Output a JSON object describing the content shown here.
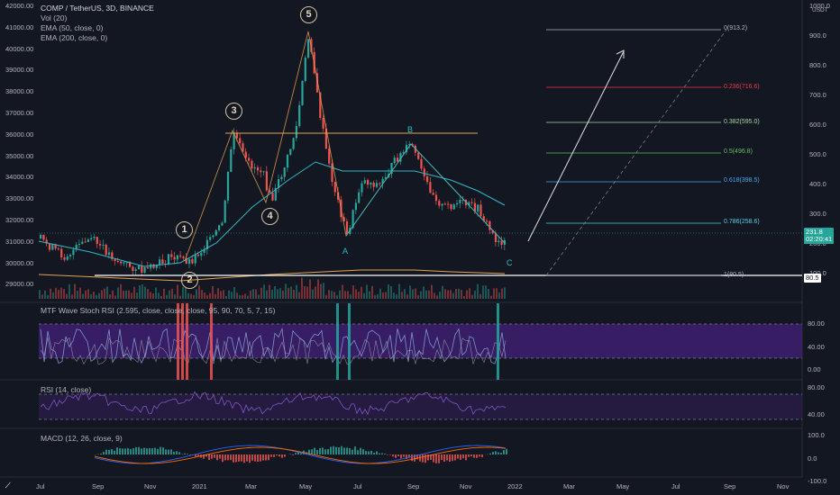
{
  "header": {
    "symbol_line": "COMP / TetherUS, 3D, BINANCE",
    "indicators": [
      "Vol (20)",
      "EMA (50, close, 0)",
      "EMA (200, close, 0)"
    ]
  },
  "price_axis": {
    "left_ticks": [
      "42000.00",
      "41000.00",
      "40000.00",
      "39000.00",
      "38000.00",
      "37000.00",
      "36000.00",
      "35000.00",
      "34000.00",
      "33000.00",
      "32000.00",
      "31000.00",
      "30000.00",
      "29000.00"
    ],
    "right_ticks": [
      "1000.0",
      "900.0",
      "800.0",
      "700.0",
      "600.0",
      "500.0",
      "400.0",
      "300.0",
      "200.0",
      "100.0"
    ],
    "unit": "USDT",
    "current_price": "231.8",
    "countdown": "02:20:41",
    "right_tag": "80.5"
  },
  "fib_levels": [
    {
      "label": "0(913.2)",
      "color": "#b2b5be"
    },
    {
      "label": "0.236(716.6)",
      "color": "#f23645"
    },
    {
      "label": "0.382(595.0)",
      "color": "#81c784"
    },
    {
      "label": "0.5(496.8)",
      "color": "#4caf50"
    },
    {
      "label": "0.618(398.5)",
      "color": "#2196f3"
    },
    {
      "label": "0.786(258.6)",
      "color": "#2fb8c8"
    },
    {
      "label": "1(80.5)",
      "color": "#b2b5be"
    }
  ],
  "wave_labels": [
    "1",
    "2",
    "3",
    "4",
    "5"
  ],
  "correction_labels": [
    "A",
    "B",
    "C"
  ],
  "panes": {
    "stoch": {
      "title": "MTF Wave Stoch RSI (2.595, close, close, close, 95, 90, 70, 5, 7, 15)",
      "ticks": [
        "80.00",
        "40.00",
        "0.00"
      ]
    },
    "rsi": {
      "title": "RSI (14, close)",
      "ticks": [
        "80.00",
        "40.00"
      ]
    },
    "macd": {
      "title": "MACD (12, 26, close, 9)",
      "ticks": [
        "100.0",
        "0.0",
        "-100.0"
      ]
    }
  },
  "time_axis": [
    "Jul",
    "Sep",
    "Nov",
    "2021",
    "Mar",
    "May",
    "Jul",
    "Sep",
    "Nov",
    "2022",
    "Mar",
    "May",
    "Jul",
    "Sep",
    "Nov"
  ],
  "colors": {
    "bg": "#131722",
    "up": "#26a69a",
    "down": "#ef5350",
    "ema50": "#2fb8c8",
    "ema200": "#e8a14f",
    "stoch_band": "#3e2070"
  }
}
